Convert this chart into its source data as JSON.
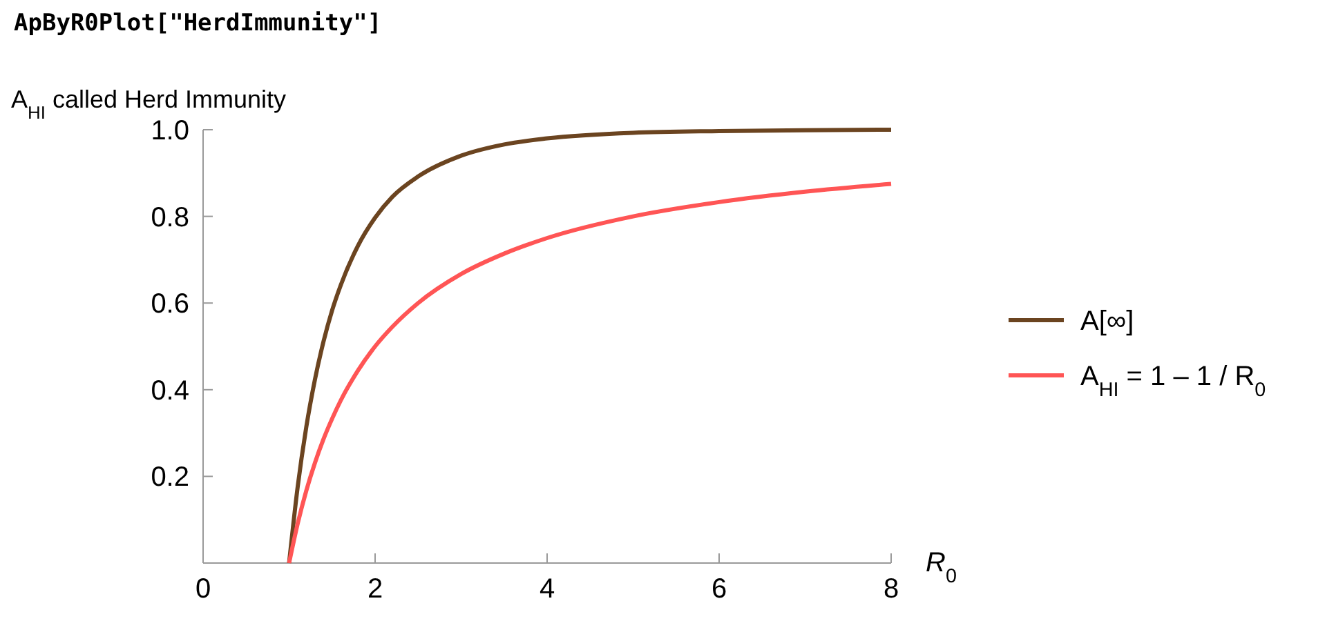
{
  "chart_data": {
    "type": "line",
    "title": "ApByR0Plot[\"HerdImmunity\"]",
    "ylabel": "A$_{HI}$ called Herd Immunity",
    "xlabel": "R$_{0}$",
    "x": [
      1,
      1.1,
      1.2,
      1.3,
      1.4,
      1.5,
      1.6,
      1.8,
      2,
      2.2,
      2.5,
      3,
      3.5,
      4,
      5,
      6,
      7,
      8
    ],
    "series": [
      {
        "name": "A[∞]",
        "color": "#6b4420",
        "values": [
          0,
          0.176,
          0.314,
          0.423,
          0.511,
          0.583,
          0.641,
          0.732,
          0.797,
          0.845,
          0.892,
          0.94,
          0.966,
          0.98,
          0.993,
          0.997,
          0.999,
          1.0
        ]
      },
      {
        "name": "A$_{HI}$ = 1 – 1 / R$_{0}$",
        "color": "#ff5555",
        "values": [
          0,
          0.091,
          0.167,
          0.231,
          0.286,
          0.333,
          0.375,
          0.444,
          0.5,
          0.545,
          0.6,
          0.667,
          0.714,
          0.75,
          0.8,
          0.833,
          0.857,
          0.875
        ]
      }
    ],
    "xlim": [
      0,
      8
    ],
    "ylim": [
      0,
      1
    ],
    "xticks": [
      0,
      2,
      4,
      6,
      8
    ],
    "yticks": [
      0.2,
      0.4,
      0.6,
      0.8,
      {
        "value": 1,
        "label": "1.0"
      }
    ],
    "legend": "right",
    "grid": false,
    "line_style": "solid",
    "marker": "none"
  }
}
